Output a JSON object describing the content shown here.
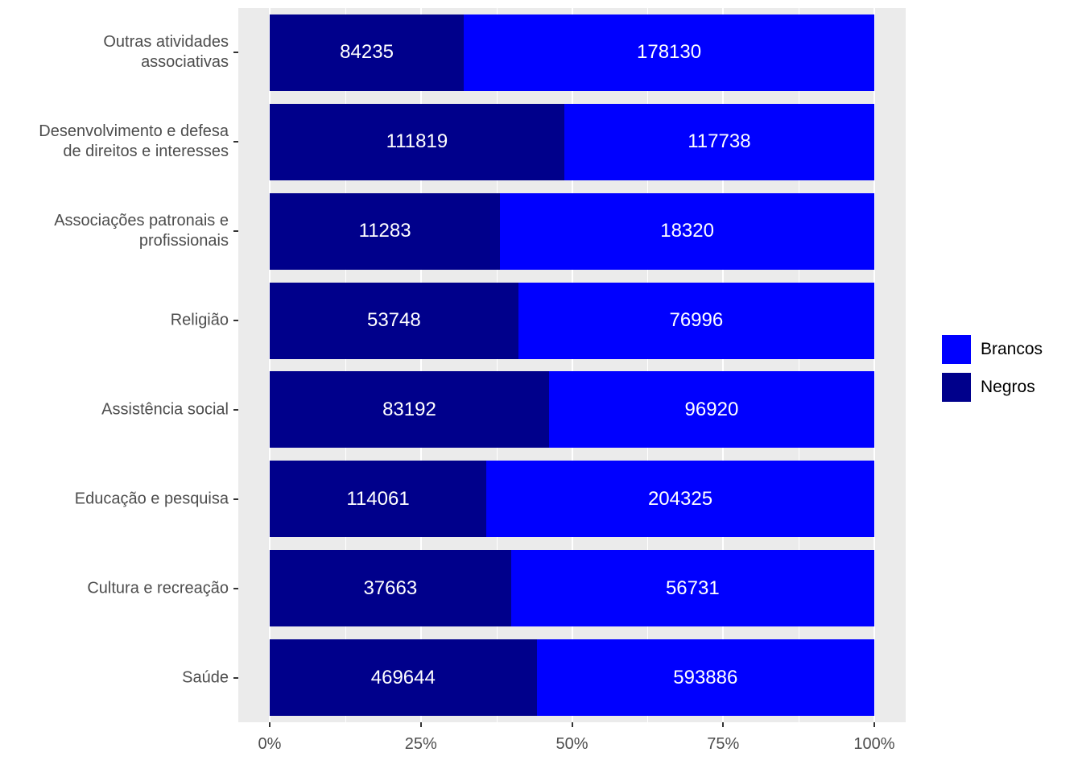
{
  "chart_data": {
    "type": "bar",
    "orientation": "horizontal",
    "mode": "stacked-fill",
    "panel_background": "#EBEBEB",
    "gridline_color": "#ffffff",
    "axis_text_color": "#4D4D4D",
    "colors": {
      "Brancos": "#0000FF",
      "Negros": "#00008B"
    },
    "rows": [
      {
        "label_lines": [
          "Outras atividades",
          "associativas"
        ],
        "negros": 84235,
        "brancos": 178130
      },
      {
        "label_lines": [
          "Desenvolvimento e defesa",
          "de direitos e interesses"
        ],
        "negros": 111819,
        "brancos": 117738
      },
      {
        "label_lines": [
          "Associações patronais e",
          "profissionais"
        ],
        "negros": 11283,
        "brancos": 18320
      },
      {
        "label_lines": [
          "Religião"
        ],
        "negros": 53748,
        "brancos": 76996
      },
      {
        "label_lines": [
          "Assistência social"
        ],
        "negros": 83192,
        "brancos": 96920
      },
      {
        "label_lines": [
          "Educação e pesquisa"
        ],
        "negros": 114061,
        "brancos": 204325
      },
      {
        "label_lines": [
          "Cultura e recreação"
        ],
        "negros": 37663,
        "brancos": 56731
      },
      {
        "label_lines": [
          "Saúde"
        ],
        "negros": 469644,
        "brancos": 593886
      }
    ],
    "x_ticks": [
      {
        "label": "0%",
        "value": 0
      },
      {
        "label": "25%",
        "value": 0.25
      },
      {
        "label": "50%",
        "value": 0.5
      },
      {
        "label": "75%",
        "value": 0.75
      },
      {
        "label": "100%",
        "value": 1
      }
    ],
    "x_minor_ticks": [
      0.125,
      0.375,
      0.625,
      0.875
    ],
    "xlim": [
      0,
      1
    ],
    "legend": {
      "position": "right",
      "items": [
        {
          "label": "Brancos",
          "color": "#0000FF"
        },
        {
          "label": "Negros",
          "color": "#00008B"
        }
      ]
    }
  }
}
